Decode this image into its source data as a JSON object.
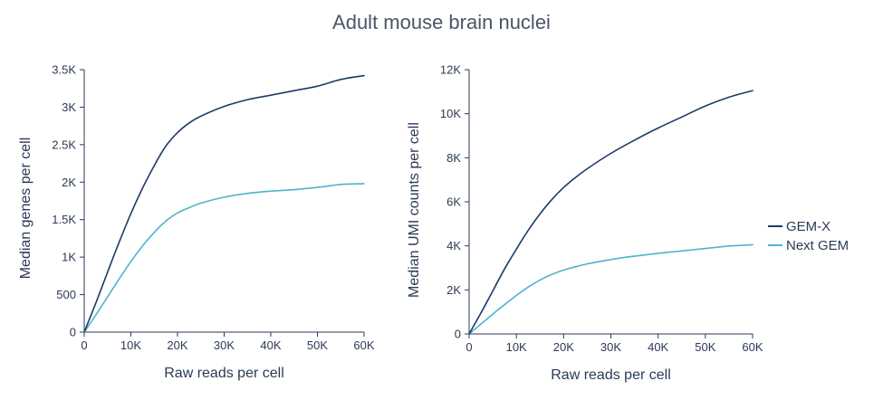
{
  "title": "Adult mouse brain nuclei",
  "colors": {
    "gem_x": "#1f3a68",
    "next_gem": "#4fb3cf",
    "axis": "#2b3a55"
  },
  "legend": [
    {
      "name": "GEM-X",
      "color": "#1f3a68"
    },
    {
      "name": "Next GEM",
      "color": "#4fb3cf"
    }
  ],
  "chart_data": [
    {
      "type": "line",
      "title": "",
      "xlabel": "Raw reads per cell",
      "ylabel": "Median genes per cell",
      "xlim": [
        0,
        60000
      ],
      "ylim": [
        0,
        3500
      ],
      "xticks": [
        0,
        10000,
        20000,
        30000,
        40000,
        50000,
        60000
      ],
      "xtick_labels": [
        "0",
        "10K",
        "20K",
        "30K",
        "40K",
        "50K",
        "60K"
      ],
      "yticks": [
        0,
        500,
        1000,
        1500,
        2000,
        2500,
        3000,
        3500
      ],
      "ytick_labels": [
        "0",
        "500",
        "1K",
        "1.5K",
        "2K",
        "2.5K",
        "3K",
        "3.5K"
      ],
      "series": [
        {
          "name": "GEM-X",
          "color": "#1f3a68",
          "x": [
            0,
            2500,
            5000,
            7500,
            10000,
            12500,
            15000,
            17500,
            20000,
            22500,
            25000,
            30000,
            35000,
            40000,
            45000,
            50000,
            55000,
            60000
          ],
          "y": [
            0,
            390,
            800,
            1200,
            1580,
            1920,
            2220,
            2480,
            2660,
            2790,
            2880,
            3010,
            3100,
            3160,
            3220,
            3280,
            3370,
            3420
          ]
        },
        {
          "name": "Next GEM",
          "color": "#4fb3cf",
          "x": [
            0,
            2500,
            5000,
            7500,
            10000,
            12500,
            15000,
            17500,
            20000,
            22500,
            25000,
            30000,
            35000,
            40000,
            45000,
            50000,
            55000,
            60000
          ],
          "y": [
            0,
            230,
            470,
            710,
            940,
            1150,
            1330,
            1480,
            1590,
            1660,
            1720,
            1800,
            1850,
            1880,
            1900,
            1930,
            1970,
            1980
          ]
        }
      ]
    },
    {
      "type": "line",
      "title": "",
      "xlabel": "Raw reads per cell",
      "ylabel": "Median UMI counts per cell",
      "xlim": [
        0,
        60000
      ],
      "ylim": [
        0,
        12000
      ],
      "xticks": [
        0,
        10000,
        20000,
        30000,
        40000,
        50000,
        60000
      ],
      "xtick_labels": [
        "0",
        "10K",
        "20K",
        "30K",
        "40K",
        "50K",
        "60K"
      ],
      "yticks": [
        0,
        2000,
        4000,
        6000,
        8000,
        10000,
        12000
      ],
      "ytick_labels": [
        "0",
        "2K",
        "4K",
        "6K",
        "8K",
        "10K",
        "12K"
      ],
      "series": [
        {
          "name": "GEM-X",
          "color": "#1f3a68",
          "x": [
            0,
            2500,
            5000,
            7500,
            10000,
            12500,
            15000,
            17500,
            20000,
            22500,
            25000,
            30000,
            35000,
            40000,
            45000,
            50000,
            55000,
            60000
          ],
          "y": [
            0,
            950,
            1950,
            2950,
            3850,
            4700,
            5450,
            6100,
            6650,
            7100,
            7500,
            8200,
            8800,
            9350,
            9850,
            10350,
            10750,
            11050
          ]
        },
        {
          "name": "Next GEM",
          "color": "#4fb3cf",
          "x": [
            0,
            2500,
            5000,
            7500,
            10000,
            12500,
            15000,
            17500,
            20000,
            22500,
            25000,
            30000,
            35000,
            40000,
            45000,
            50000,
            55000,
            60000
          ],
          "y": [
            0,
            450,
            900,
            1330,
            1750,
            2130,
            2450,
            2700,
            2900,
            3050,
            3180,
            3380,
            3530,
            3660,
            3770,
            3880,
            3990,
            4050
          ]
        }
      ]
    }
  ]
}
